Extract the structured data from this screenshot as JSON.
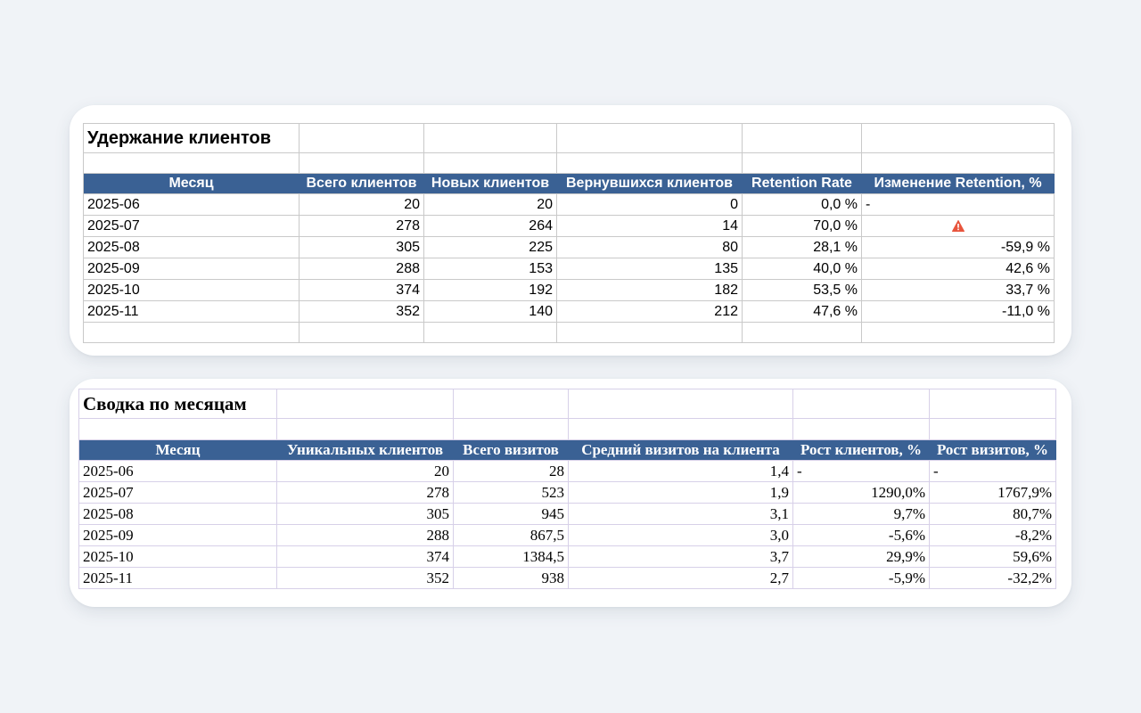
{
  "retention": {
    "title": "Удержание клиентов",
    "headers": [
      "Месяц",
      "Всего клиентов",
      "Новых клиентов",
      "Вернувшихся клиентов",
      "Retention Rate",
      "Изменение Retention, %"
    ],
    "rows": [
      [
        "2025-06",
        "20",
        "20",
        "0",
        "0,0 %",
        "-"
      ],
      [
        "2025-07",
        "278",
        "264",
        "14",
        "70,0 %",
        ""
      ],
      [
        "2025-08",
        "305",
        "225",
        "80",
        "28,1 %",
        "-59,9 %"
      ],
      [
        "2025-09",
        "288",
        "153",
        "135",
        "40,0 %",
        "42,6 %"
      ],
      [
        "2025-10",
        "374",
        "192",
        "182",
        "53,5 %",
        "33,7 %"
      ],
      [
        "2025-11",
        "352",
        "140",
        "212",
        "47,6 %",
        "-11,0 %"
      ]
    ],
    "warning_icon": "warning-icon",
    "warning_color": "#e8553d"
  },
  "summary": {
    "title": "Сводка по месяцам",
    "headers": [
      "Месяц",
      "Уникальных клиентов",
      "Всего визитов",
      "Средний визитов на клиента",
      "Рост клиентов, %",
      "Рост визитов, %"
    ],
    "rows": [
      [
        "2025-06",
        "20",
        "28",
        "1,4",
        "-",
        "-"
      ],
      [
        "2025-07",
        "278",
        "523",
        "1,9",
        "1290,0%",
        "1767,9%"
      ],
      [
        "2025-08",
        "305",
        "945",
        "3,1",
        "9,7%",
        "80,7%"
      ],
      [
        "2025-09",
        "288",
        "867,5",
        "3,0",
        "-5,6%",
        "-8,2%"
      ],
      [
        "2025-10",
        "374",
        "1384,5",
        "3,7",
        "29,9%",
        "59,6%"
      ],
      [
        "2025-11",
        "352",
        "938",
        "2,7",
        "-5,9%",
        "-32,2%"
      ]
    ]
  },
  "colors": {
    "header_bg": "#3a6194",
    "background": "#f0f3f7"
  }
}
